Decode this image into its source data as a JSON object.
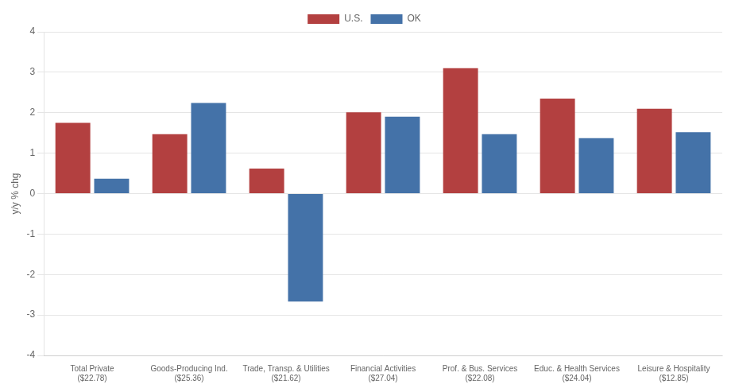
{
  "chart_data": {
    "type": "bar",
    "ylabel": "y/y % chg",
    "categories": [
      "Total Private\n($22.78)",
      "Goods-Producing Ind.\n($25.36)",
      "Trade, Transp. & Utilities\n($21.62)",
      "Financial Activities\n($27.04)",
      "Prof. & Bus. Services\n($22.08)",
      "Educ. & Health Services\n($24.04)",
      "Leisure & Hospitality\n($12.85)"
    ],
    "series": [
      {
        "name": "U.S.",
        "color": "#b34040",
        "values": [
          1.75,
          1.47,
          0.62,
          2.01,
          3.1,
          2.35,
          2.1
        ]
      },
      {
        "name": "OK",
        "color": "#4472a8",
        "values": [
          0.37,
          2.24,
          -2.67,
          1.9,
          1.47,
          1.37,
          1.52
        ]
      }
    ],
    "ylim": [
      -4,
      4
    ],
    "yticks": [
      -4,
      -3,
      -2,
      -1,
      0,
      1,
      2,
      3,
      4
    ],
    "grid": true,
    "legend": "top"
  }
}
